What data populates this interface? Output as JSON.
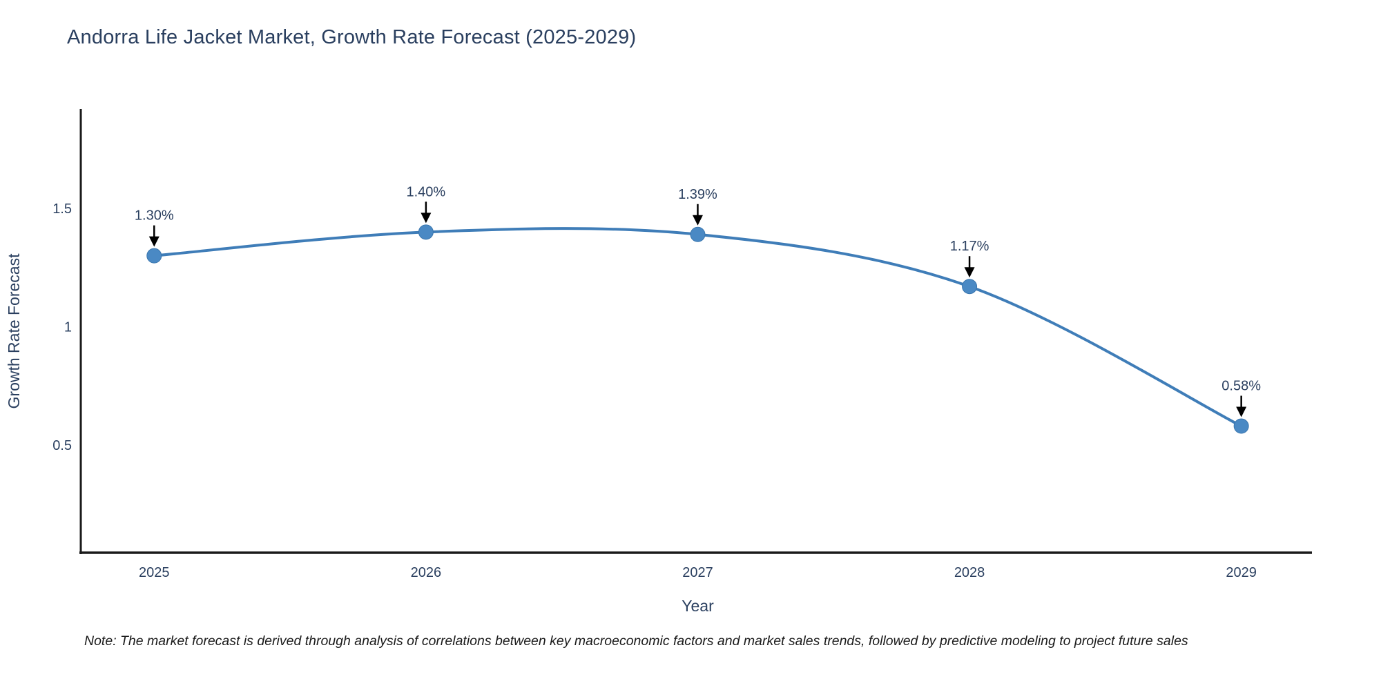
{
  "title": "Andorra Life Jacket Market, Growth Rate Forecast (2025-2029)",
  "note": "Note: The market forecast is derived through analysis of correlations between key macroeconomic factors and market sales trends, followed by predictive modeling to project future sales",
  "chart_data": {
    "type": "line",
    "line_shape": "spline",
    "title": "Andorra Life Jacket Market, Growth Rate Forecast (2025-2029)",
    "xlabel": "Year",
    "ylabel": "Growth Rate Forecast",
    "x": [
      2025,
      2026,
      2027,
      2028,
      2029
    ],
    "values": [
      1.3,
      1.4,
      1.39,
      1.17,
      0.58
    ],
    "point_labels": [
      "1.30%",
      "1.40%",
      "1.39%",
      "1.17%",
      "0.58%"
    ],
    "xtick_labels": [
      "2025",
      "2026",
      "2027",
      "2028",
      "2029"
    ],
    "yticks": [
      0.5,
      1,
      1.5
    ],
    "ytick_labels": [
      "0.5",
      "1",
      "1.5"
    ],
    "xlim": [
      2024.73,
      2029.26
    ],
    "ylim": [
      0.045,
      1.92
    ],
    "grid": false,
    "legend": false,
    "annotations_have_arrows": true,
    "colors": {
      "line": "#3f7db8",
      "marker_fill": "#4a89c4",
      "marker_edge": "#3a76ae",
      "axis": "#1a1a1a",
      "text": "#2a3f5f",
      "arrow": "#000000",
      "background": "#ffffff"
    }
  }
}
